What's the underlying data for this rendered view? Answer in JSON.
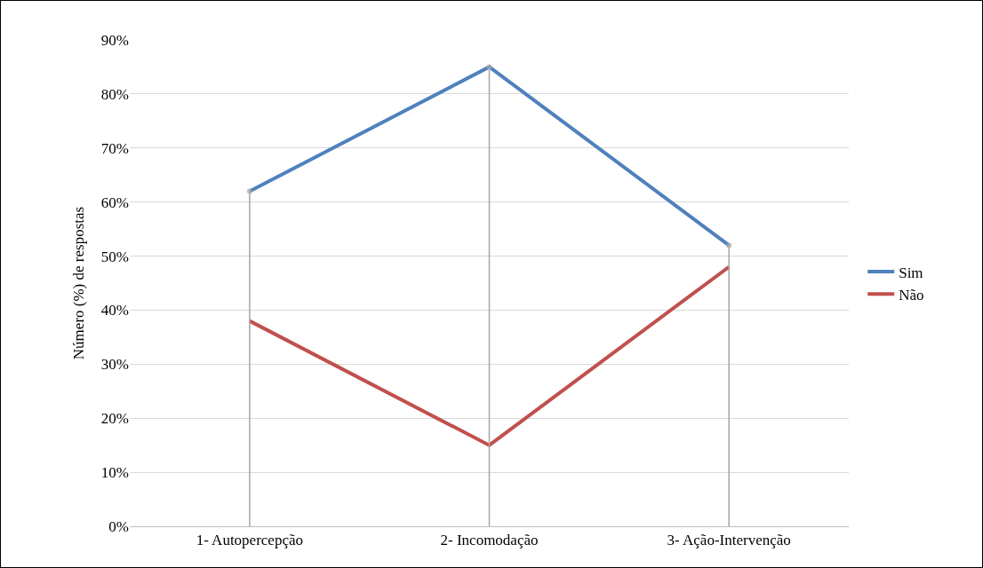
{
  "chart_data": {
    "type": "line",
    "ylabel": "Número (%) de respostas",
    "categories": [
      "1- Autopercepção",
      "2- Incomodação",
      "3- Ação-Intervenção"
    ],
    "series": [
      {
        "type": "lollipop",
        "color": "#a6a6a6",
        "values": [
          62,
          85,
          52
        ]
      },
      {
        "name": "Sim",
        "color": "#4f81bd",
        "values": [
          62,
          85,
          52
        ]
      },
      {
        "name": "Não",
        "color": "#c0504d",
        "values": [
          38,
          15,
          48
        ]
      }
    ],
    "ylim": [
      0,
      90
    ],
    "yticks": [
      {
        "value": 0,
        "label": "0%"
      },
      {
        "value": 10,
        "label": "10%"
      },
      {
        "value": 20,
        "label": "20%"
      },
      {
        "value": 30,
        "label": "30%"
      },
      {
        "value": 40,
        "label": "40%"
      },
      {
        "value": 50,
        "label": "50%"
      },
      {
        "value": 60,
        "label": "60%"
      },
      {
        "value": 70,
        "label": "70%"
      },
      {
        "value": 80,
        "label": "80%"
      },
      {
        "value": 90,
        "label": "90%"
      }
    ],
    "grid": "y",
    "legend": "right",
    "marker": "none",
    "line_style": "solid"
  }
}
